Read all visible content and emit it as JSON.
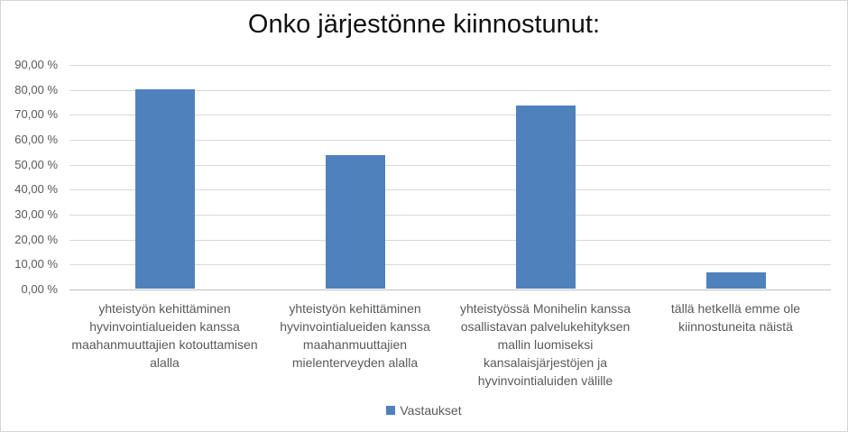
{
  "chart_data": {
    "type": "bar",
    "title": "Onko järjestönne kiinnostunut:",
    "categories": [
      "yhteistyön kehittäminen hyvinvointialueiden kanssa maahanmuuttajien kotouttamisen alalla",
      "yhteistyön kehittäminen hyvinvointialueiden kanssa maahanmuuttajien mielenterveyden alalla",
      "yhteistyössä Monihelin kanssa osallistavan palvelukehityksen mallin luomiseksi kansalaisjärjestöjen ja hyvinvointialuiden välille",
      "tällä hetkellä emme ole kiinnostuneita näistä"
    ],
    "series": [
      {
        "name": "Vastaukset",
        "values": [
          80.0,
          53.33,
          73.33,
          6.67
        ]
      }
    ],
    "y_ticks": [
      {
        "value": 0,
        "label": "0,00 %"
      },
      {
        "value": 10,
        "label": "10,00 %"
      },
      {
        "value": 20,
        "label": "20,00 %"
      },
      {
        "value": 30,
        "label": "30,00 %"
      },
      {
        "value": 40,
        "label": "40,00 %"
      },
      {
        "value": 50,
        "label": "50,00 %"
      },
      {
        "value": 60,
        "label": "60,00 %"
      },
      {
        "value": 70,
        "label": "70,00 %"
      },
      {
        "value": 80,
        "label": "80,00 %"
      },
      {
        "value": 90,
        "label": "90,00 %"
      }
    ],
    "ylim": [
      0,
      90
    ],
    "grid": true,
    "legend_position": "bottom",
    "bar_color": "#4f81bd"
  },
  "colors": {
    "bar": "#4f81bd",
    "gridline": "#d9d9d9",
    "axis_line": "#bfbfbf",
    "axis_text": "#595959",
    "title_text": "#111111",
    "chart_border": "#d6d6d6"
  }
}
